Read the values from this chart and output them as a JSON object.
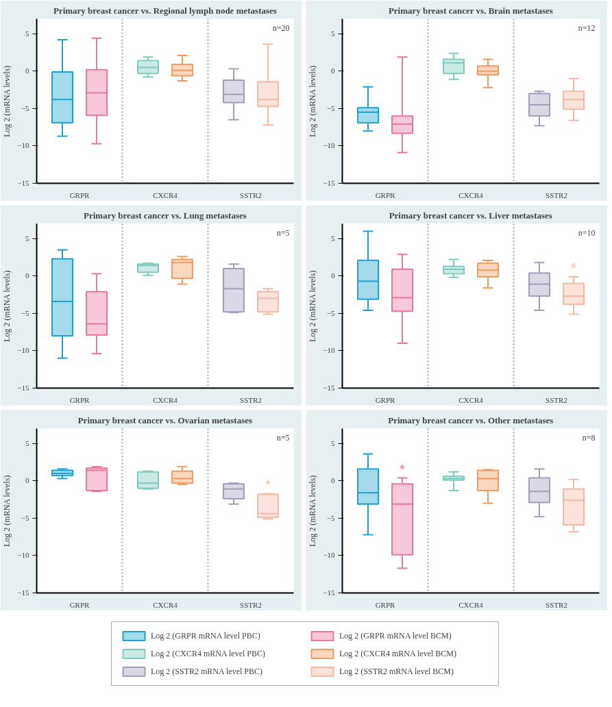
{
  "chart_data": [
    {
      "type": "box",
      "title": "Primary breast cancer vs. Regional lymph node metastases",
      "ylabel": "Log 2 (mRNA levels)",
      "categories": [
        "GRPR",
        "CXCR4",
        "SSTR2"
      ],
      "ylim": [
        -15,
        7
      ],
      "yticks": [
        -15,
        -10,
        -5,
        0,
        5
      ],
      "grid": false,
      "legend": false,
      "annotations": [
        "n=20"
      ],
      "series": [
        {
          "color": "#1aa3d0",
          "boxes": [
            {
              "low": -8.7,
              "q1": -6.9,
              "median": -3.8,
              "q3": -0.1,
              "high": 4.2
            },
            null,
            null
          ]
        },
        {
          "color": "#e9769f",
          "boxes": [
            {
              "low": -9.7,
              "q1": -5.9,
              "median": -2.9,
              "q3": 0.2,
              "high": 4.4
            },
            null,
            null
          ]
        },
        {
          "color": "#7fcbbd",
          "boxes": [
            null,
            {
              "low": -0.8,
              "q1": -0.3,
              "median": 0.5,
              "q3": 1.4,
              "high": 1.9
            },
            null
          ]
        },
        {
          "color": "#f29a5f",
          "boxes": [
            null,
            {
              "low": -1.3,
              "q1": -0.6,
              "median": 0.1,
              "q3": 0.9,
              "high": 2.1
            },
            null
          ]
        },
        {
          "color": "#a49cbb",
          "boxes": [
            null,
            null,
            {
              "low": -6.5,
              "q1": -4.2,
              "median": -3.1,
              "q3": -1.2,
              "high": 0.3
            }
          ]
        },
        {
          "color": "#f5b9a6",
          "boxes": [
            null,
            null,
            {
              "low": -7.2,
              "q1": -4.7,
              "median": -3.8,
              "q3": -1.4,
              "high": 3.6
            }
          ]
        }
      ]
    },
    {
      "type": "box",
      "title": "Primary breast cancer vs. Brain metastases",
      "ylabel": "Log 2 (mRNA levels)",
      "categories": [
        "GRPR",
        "CXCR4",
        "SSTR2"
      ],
      "ylim": [
        -15,
        7
      ],
      "yticks": [
        -15,
        -10,
        -5,
        0,
        5
      ],
      "grid": false,
      "legend": false,
      "annotations": [
        "n=12"
      ],
      "series": [
        {
          "color": "#1aa3d0",
          "boxes": [
            {
              "low": -8.0,
              "q1": -6.9,
              "median": -5.5,
              "q3": -4.9,
              "high": -2.1
            },
            null,
            null
          ]
        },
        {
          "color": "#e9769f",
          "boxes": [
            {
              "low": -10.9,
              "q1": -8.3,
              "median": -7.1,
              "q3": -6.0,
              "high": 1.9
            },
            null,
            null
          ]
        },
        {
          "color": "#7fcbbd",
          "boxes": [
            null,
            {
              "low": -1.1,
              "q1": -0.3,
              "median": 1.1,
              "q3": 1.6,
              "high": 2.4
            },
            null
          ]
        },
        {
          "color": "#f29a5f",
          "boxes": [
            null,
            {
              "low": -2.2,
              "q1": -0.5,
              "median": 0.0,
              "q3": 0.7,
              "high": 1.6
            },
            null
          ]
        },
        {
          "color": "#a49cbb",
          "boxes": [
            null,
            null,
            {
              "low": -7.3,
              "q1": -6.0,
              "median": -4.5,
              "q3": -3.0,
              "high": -2.7
            }
          ]
        },
        {
          "color": "#f5b9a6",
          "boxes": [
            null,
            null,
            {
              "low": -6.6,
              "q1": -5.1,
              "median": -3.8,
              "q3": -2.7,
              "high": -1.0
            }
          ]
        }
      ]
    },
    {
      "type": "box",
      "title": "Primary breast cancer vs. Lung metastases",
      "ylabel": "Log 2 (mRNA levels)",
      "categories": [
        "GRPR",
        "CXCR4",
        "SSTR2"
      ],
      "ylim": [
        -15,
        7
      ],
      "yticks": [
        -15,
        -10,
        -5,
        0,
        5
      ],
      "grid": false,
      "legend": false,
      "annotations": [
        "n=5"
      ],
      "series": [
        {
          "color": "#1aa3d0",
          "boxes": [
            {
              "low": -11.0,
              "q1": -8.0,
              "median": -3.4,
              "q3": 2.3,
              "high": 3.5
            },
            null,
            null
          ]
        },
        {
          "color": "#e9769f",
          "boxes": [
            {
              "low": -10.4,
              "q1": -7.9,
              "median": -6.4,
              "q3": -2.1,
              "high": 0.3
            },
            null,
            null
          ]
        },
        {
          "color": "#7fcbbd",
          "boxes": [
            null,
            {
              "low": 0.1,
              "q1": 0.5,
              "median": 1.4,
              "q3": 1.6,
              "high": 1.7
            },
            null
          ]
        },
        {
          "color": "#f29a5f",
          "boxes": [
            null,
            {
              "low": -1.1,
              "q1": -0.3,
              "median": 1.8,
              "q3": 2.2,
              "high": 2.6
            },
            null
          ]
        },
        {
          "color": "#a49cbb",
          "boxes": [
            null,
            null,
            {
              "low": -4.9,
              "q1": -4.8,
              "median": -1.7,
              "q3": 1.0,
              "high": 1.6
            }
          ]
        },
        {
          "color": "#f5b9a6",
          "boxes": [
            null,
            null,
            {
              "low": -5.1,
              "q1": -4.8,
              "median": -3.0,
              "q3": -2.1,
              "high": -1.7
            }
          ]
        }
      ]
    },
    {
      "type": "box",
      "title": "Primary breast cancer vs. Liver metastases",
      "ylabel": "Log 2 (mRNA levels)",
      "categories": [
        "GRPR",
        "CXCR4",
        "SSTR2"
      ],
      "ylim": [
        -15,
        7
      ],
      "yticks": [
        -15,
        -10,
        -5,
        0,
        5
      ],
      "grid": false,
      "legend": false,
      "annotations": [
        "n=10"
      ],
      "series": [
        {
          "color": "#1aa3d0",
          "boxes": [
            {
              "low": -4.6,
              "q1": -3.1,
              "median": -0.7,
              "q3": 2.1,
              "high": 6.0
            },
            null,
            null
          ]
        },
        {
          "color": "#e9769f",
          "boxes": [
            {
              "low": -9.0,
              "q1": -4.7,
              "median": -2.9,
              "q3": 0.9,
              "high": 2.9
            },
            null,
            null
          ]
        },
        {
          "color": "#7fcbbd",
          "boxes": [
            null,
            {
              "low": -0.2,
              "q1": 0.3,
              "median": 0.9,
              "q3": 1.3,
              "high": 2.2
            },
            null
          ]
        },
        {
          "color": "#f29a5f",
          "boxes": [
            null,
            {
              "low": -1.6,
              "q1": -0.1,
              "median": 0.8,
              "q3": 1.7,
              "high": 2.1
            },
            null
          ]
        },
        {
          "color": "#a49cbb",
          "boxes": [
            null,
            null,
            {
              "low": -4.6,
              "q1": -2.7,
              "median": -1.1,
              "q3": 0.4,
              "high": 1.8
            }
          ]
        },
        {
          "color": "#f5b9a6",
          "value_labels": [
            null,
            null,
            "*"
          ],
          "boxes": [
            null,
            null,
            {
              "low": -5.1,
              "q1": -3.8,
              "median": -2.7,
              "q3": -1.0,
              "high": -0.1
            }
          ]
        }
      ]
    },
    {
      "type": "box",
      "title": "Primary breast cancer vs. Ovarian metastases",
      "ylabel": "Log 2 (mRNA levels)",
      "categories": [
        "GRPR",
        "CXCR4",
        "SSTR2"
      ],
      "ylim": [
        -15,
        7
      ],
      "yticks": [
        -15,
        -10,
        -5,
        0,
        5
      ],
      "grid": false,
      "legend": false,
      "annotations": [
        "n=5"
      ],
      "series": [
        {
          "color": "#1aa3d0",
          "boxes": [
            {
              "low": 0.3,
              "q1": 0.7,
              "median": 1.0,
              "q3": 1.4,
              "high": 1.6
            },
            null,
            null
          ]
        },
        {
          "color": "#e9769f",
          "boxes": [
            {
              "low": -1.4,
              "q1": -1.3,
              "median": 1.4,
              "q3": 1.7,
              "high": 1.9
            },
            null,
            null
          ]
        },
        {
          "color": "#7fcbbd",
          "boxes": [
            null,
            {
              "low": -1.1,
              "q1": -1.0,
              "median": -0.3,
              "q3": 1.2,
              "high": 1.3
            },
            null
          ]
        },
        {
          "color": "#f29a5f",
          "boxes": [
            null,
            {
              "low": -0.5,
              "q1": -0.3,
              "median": 0.3,
              "q3": 1.3,
              "high": 1.9
            },
            null
          ]
        },
        {
          "color": "#a49cbb",
          "boxes": [
            null,
            null,
            {
              "low": -3.1,
              "q1": -2.4,
              "median": -1.1,
              "q3": -0.4,
              "high": -0.3
            }
          ]
        },
        {
          "color": "#f5b9a6",
          "value_labels": [
            null,
            null,
            "*"
          ],
          "boxes": [
            null,
            null,
            {
              "low": -5.1,
              "q1": -4.9,
              "median": -4.4,
              "q3": -1.8,
              "high": -1.7
            }
          ]
        }
      ]
    },
    {
      "type": "box",
      "title": "Primary breast cancer vs. Other metastases",
      "ylabel": "Log 2 (mRNA levels)",
      "categories": [
        "GRPR",
        "CXCR4",
        "SSTR2"
      ],
      "ylim": [
        -15,
        7
      ],
      "yticks": [
        -15,
        -10,
        -5,
        0,
        5
      ],
      "grid": false,
      "legend": "bottom",
      "annotations": [
        "n=8"
      ],
      "series": [
        {
          "name": "Log 2 (GRPR mRNA level PBC)",
          "color": "#1aa3d0",
          "boxes": [
            {
              "low": -7.2,
              "q1": -3.1,
              "median": -1.6,
              "q3": 1.6,
              "high": 3.6
            },
            null,
            null
          ]
        },
        {
          "name": "Log 2 (GRPR mRNA level BCM)",
          "color": "#e9769f",
          "value_labels": [
            "*",
            null,
            null
          ],
          "boxes": [
            {
              "low": -11.7,
              "q1": -9.9,
              "median": -3.1,
              "q3": -0.4,
              "high": 0.4
            },
            null,
            null
          ]
        },
        {
          "name": "Log 2 (CXCR4 mRNA level PBC)",
          "color": "#7fcbbd",
          "boxes": [
            null,
            {
              "low": -1.3,
              "q1": 0.1,
              "median": 0.3,
              "q3": 0.6,
              "high": 1.2
            },
            null
          ]
        },
        {
          "name": "Log 2 (CXCR4 mRNA level BCM)",
          "color": "#f29a5f",
          "boxes": [
            null,
            {
              "low": -3.0,
              "q1": -1.3,
              "median": 0.3,
              "q3": 1.4,
              "high": 1.5
            },
            null
          ]
        },
        {
          "name": "Log 2 (SSTR2 mRNA level PBC)",
          "color": "#a49cbb",
          "boxes": [
            null,
            null,
            {
              "low": -4.8,
              "q1": -2.9,
              "median": -1.4,
              "q3": 0.4,
              "high": 1.6
            }
          ]
        },
        {
          "name": "Log 2 (SSTR2 mRNA level BCM)",
          "color": "#f5b9a6",
          "boxes": [
            null,
            null,
            {
              "low": -6.8,
              "q1": -5.9,
              "median": -2.6,
              "q3": -1.1,
              "high": 0.2
            }
          ]
        }
      ]
    }
  ]
}
